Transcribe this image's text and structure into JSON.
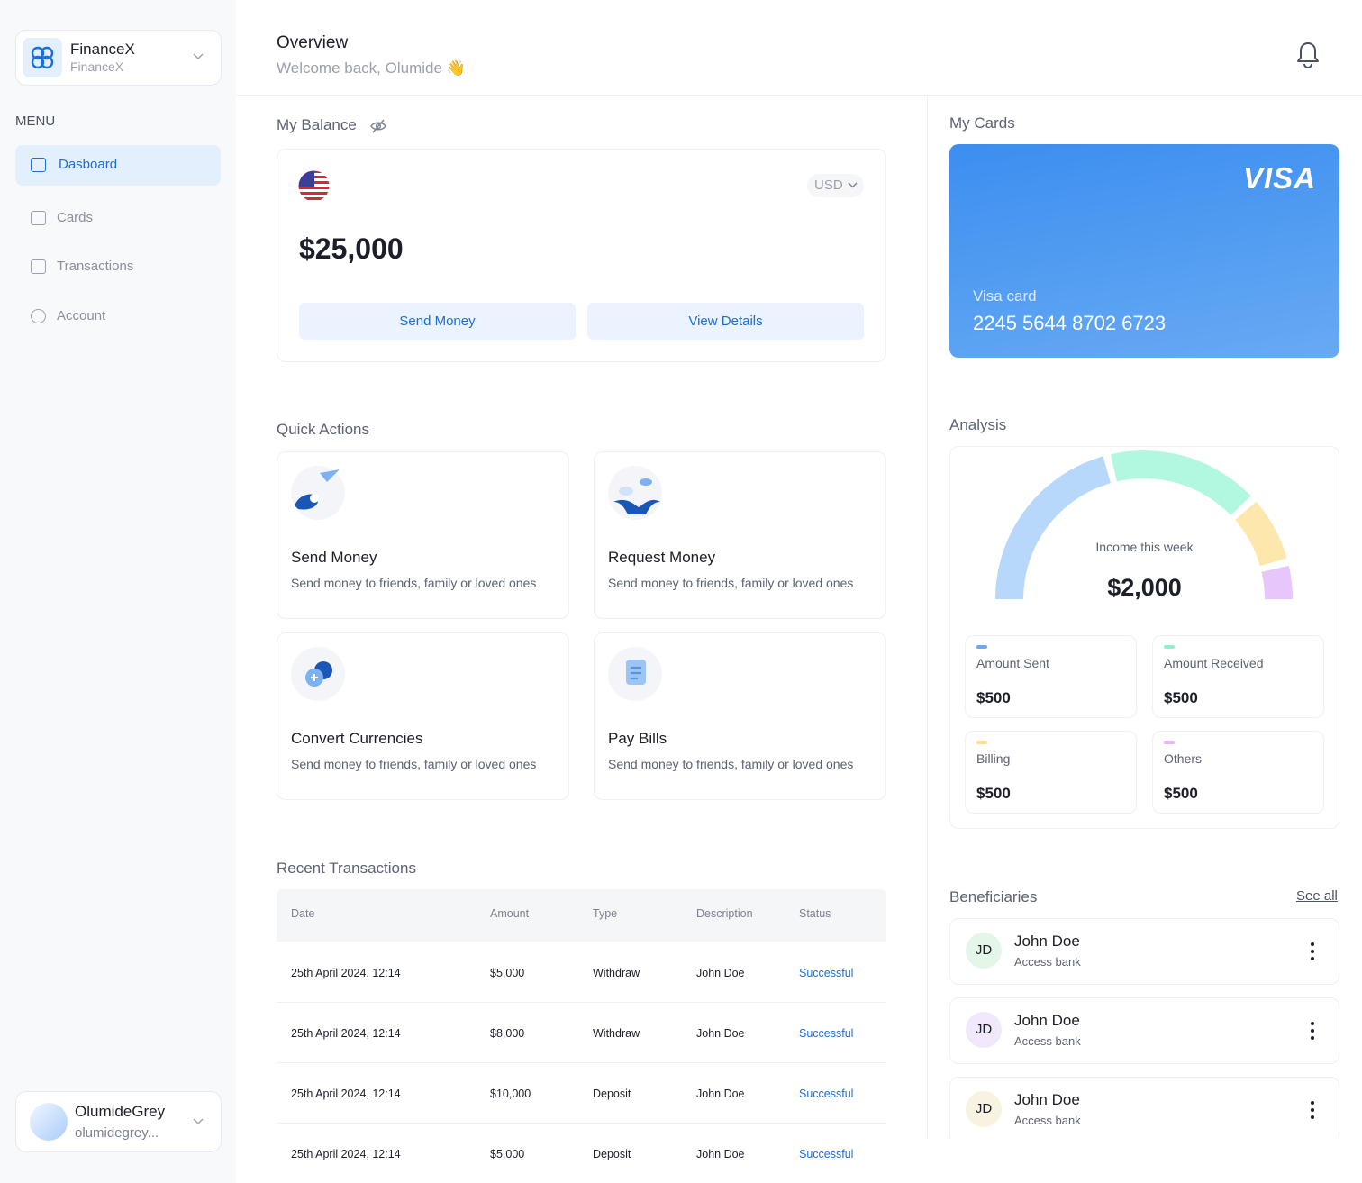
{
  "sidebar": {
    "brand": {
      "name": "FinanceX",
      "subtitle": "FinanceX"
    },
    "menu_label": "MENU",
    "menu": [
      "Dasboard",
      "Cards",
      "Transactions",
      "Account"
    ],
    "user": {
      "name": "OlumideGrey",
      "email": "olumidegrey..."
    }
  },
  "header": {
    "title": "Overview",
    "subtitle": "Welcome back, Olumide 👋"
  },
  "balance": {
    "title": "My Balance",
    "currency": "USD",
    "amount": "$25,000",
    "actions": [
      "Send Money",
      "View Details"
    ]
  },
  "quick_actions": {
    "title": "Quick Actions",
    "items": [
      {
        "title": "Send Money",
        "description": "Send money to friends, family or loved ones"
      },
      {
        "title": "Request Money",
        "description": "Send money to friends, family or loved ones"
      },
      {
        "title": "Convert Currencies",
        "description": "Send money to friends, family or loved ones"
      },
      {
        "title": "Pay Bills",
        "description": "Send money to friends, family or loved ones"
      }
    ]
  },
  "transactions": {
    "title": "Recent Transactions",
    "columns": [
      "Date",
      "Amount",
      "Type",
      "Description",
      "Status"
    ],
    "rows": [
      [
        "25th April 2024, 12:14",
        "$5,000",
        "Withdraw",
        "John Doe",
        "Successful"
      ],
      [
        "25th April 2024, 12:14",
        "$8,000",
        "Withdraw",
        "John Doe",
        "Successful"
      ],
      [
        "25th April 2024, 12:14",
        "$10,000",
        "Deposit",
        "John Doe",
        "Successful"
      ],
      [
        "25th April 2024, 12:14",
        "$5,000",
        "Deposit",
        "John Doe",
        "Successful"
      ]
    ]
  },
  "cards": {
    "title": "My Cards",
    "brand": "VISA",
    "label": "Visa card",
    "number": "2245 5644 8702 6723"
  },
  "analysis": {
    "title": "Analysis",
    "caption": "Income this week",
    "total": "$2,000",
    "stats": [
      {
        "label": "Amount Sent",
        "value": "$500"
      },
      {
        "label": "Amount Received",
        "value": "$500"
      },
      {
        "label": "Billing",
        "value": "$500"
      },
      {
        "label": "Others",
        "value": "$500"
      }
    ]
  },
  "beneficiaries": {
    "title": "Beneficiaries",
    "see_all": "See all",
    "items": [
      {
        "initials": "JD",
        "name": "John Doe",
        "bank": "Access bank"
      },
      {
        "initials": "JD",
        "name": "John Doe",
        "bank": "Access bank"
      },
      {
        "initials": "JD",
        "name": "John Doe",
        "bank": "Access bank"
      }
    ]
  }
}
